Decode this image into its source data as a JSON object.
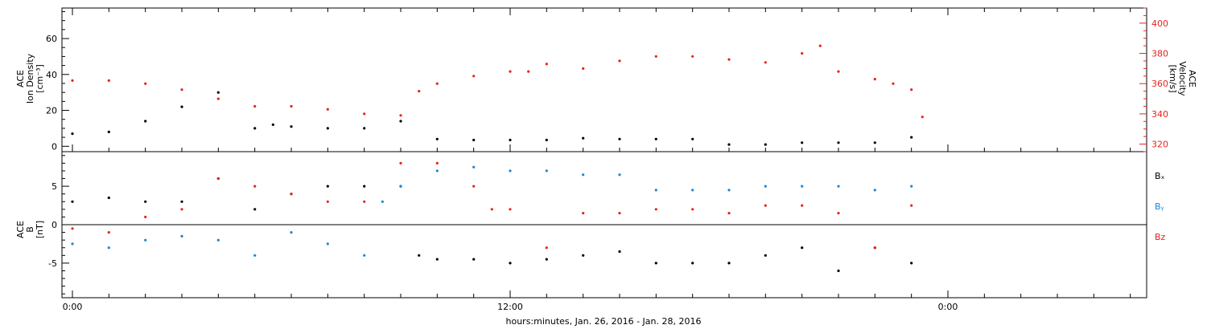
{
  "chart_data": [
    {
      "type": "scatter",
      "title": "",
      "xlabel": "hours:minutes, Jan. 26, 2016 - Jan. 28, 2016",
      "x_tick_labels": [
        "0:00",
        "12:00",
        "0:00"
      ],
      "left_axis": {
        "label_lines": [
          "ACE",
          "Ion Density",
          "[cm⁻³]"
        ],
        "ylim": [
          -3,
          77
        ],
        "ticks": [
          0,
          20,
          40,
          60
        ]
      },
      "right_axis": {
        "label_lines": [
          "ACE",
          "Velocity",
          "[km/s]"
        ],
        "ylim": [
          315,
          410
        ],
        "ticks": [
          320,
          340,
          360,
          380,
          400
        ],
        "color": "#e8231e"
      },
      "series": [
        {
          "axis": "left",
          "color": "#000000",
          "points_hours": [
            0,
            1,
            2,
            3,
            4,
            5,
            5.5,
            6,
            7,
            8,
            9,
            10,
            11,
            12,
            13,
            14,
            15,
            16,
            17,
            18,
            19,
            20,
            21,
            22,
            23
          ],
          "x_hours": [
            0,
            1,
            2,
            3,
            4,
            5,
            5.5,
            6,
            7,
            8,
            9,
            10,
            11,
            12,
            13,
            14,
            15,
            16,
            17,
            18,
            19,
            20,
            21,
            22,
            23
          ],
          "values": [
            7,
            8,
            14,
            22,
            30,
            10,
            12,
            11,
            10,
            10,
            14,
            4,
            3.5,
            3.5,
            3.5,
            4.5,
            4,
            4,
            4,
            1,
            1,
            2,
            2,
            2,
            5
          ]
        },
        {
          "axis": "right",
          "color": "#e8231e",
          "x_hours": [
            0,
            1,
            2,
            3,
            4,
            5,
            6,
            7,
            8,
            9,
            9.5,
            10,
            11,
            12,
            12.5,
            13,
            14,
            15,
            16,
            17,
            18,
            19,
            20,
            20.5,
            21,
            22,
            22.5,
            23,
            23.3
          ],
          "values": [
            362,
            362,
            360,
            356,
            350,
            345,
            345,
            343,
            340,
            339,
            355,
            360,
            365,
            368,
            368,
            373,
            370,
            375,
            378,
            378,
            376,
            374,
            380,
            385,
            368,
            363,
            360,
            356,
            338
          ]
        }
      ]
    },
    {
      "type": "scatter",
      "title": "",
      "left_axis": {
        "label_lines": [
          "ACE",
          "B",
          "[nT]"
        ],
        "ylim": [
          -9.5,
          9.5
        ],
        "ticks": [
          -5,
          0,
          5
        ]
      },
      "legend": [
        "Bₓ",
        "Bᵧ",
        "Bz"
      ],
      "legend_placement": "right",
      "series": [
        {
          "color": "#000000",
          "x_hours": [
            0,
            1,
            2,
            3,
            4,
            5,
            6,
            7,
            8,
            9,
            9.5,
            10,
            11,
            12,
            13,
            14,
            15,
            16,
            17,
            18,
            19,
            20,
            21,
            22,
            23
          ],
          "values": [
            3,
            3.5,
            3,
            3,
            6,
            2,
            4,
            5,
            5,
            5,
            -4,
            -4.5,
            -4.5,
            -5,
            -4.5,
            -4,
            -3.5,
            -5,
            -5,
            -5,
            -4,
            -3,
            -6,
            -3,
            -5
          ]
        },
        {
          "color": "#1f86d0",
          "x_hours": [
            0,
            1,
            2,
            3,
            4,
            5,
            6,
            7,
            8,
            8.5,
            9,
            10,
            11,
            12,
            13,
            14,
            15,
            16,
            17,
            18,
            19,
            20,
            21,
            22,
            23
          ],
          "values": [
            -2.5,
            -3,
            -2,
            -1.5,
            -2,
            -4,
            -1,
            -2.5,
            -4,
            3,
            5,
            7,
            7.5,
            7,
            7,
            6.5,
            6.5,
            4.5,
            4.5,
            4.5,
            5,
            5,
            5,
            4.5,
            5
          ]
        },
        {
          "color": "#e8231e",
          "x_hours": [
            0,
            1,
            2,
            3,
            4,
            5,
            6,
            7,
            8,
            9,
            10,
            11,
            11.5,
            12,
            13,
            14,
            15,
            16,
            17,
            18,
            19,
            20,
            21,
            22,
            23
          ],
          "values": [
            -0.5,
            -1,
            1,
            2,
            6,
            5,
            4,
            3,
            3,
            8,
            8,
            5,
            2,
            2,
            -3,
            1.5,
            1.5,
            2,
            2,
            1.5,
            2.5,
            2.5,
            1.5,
            -3,
            2.5
          ]
        }
      ]
    }
  ]
}
